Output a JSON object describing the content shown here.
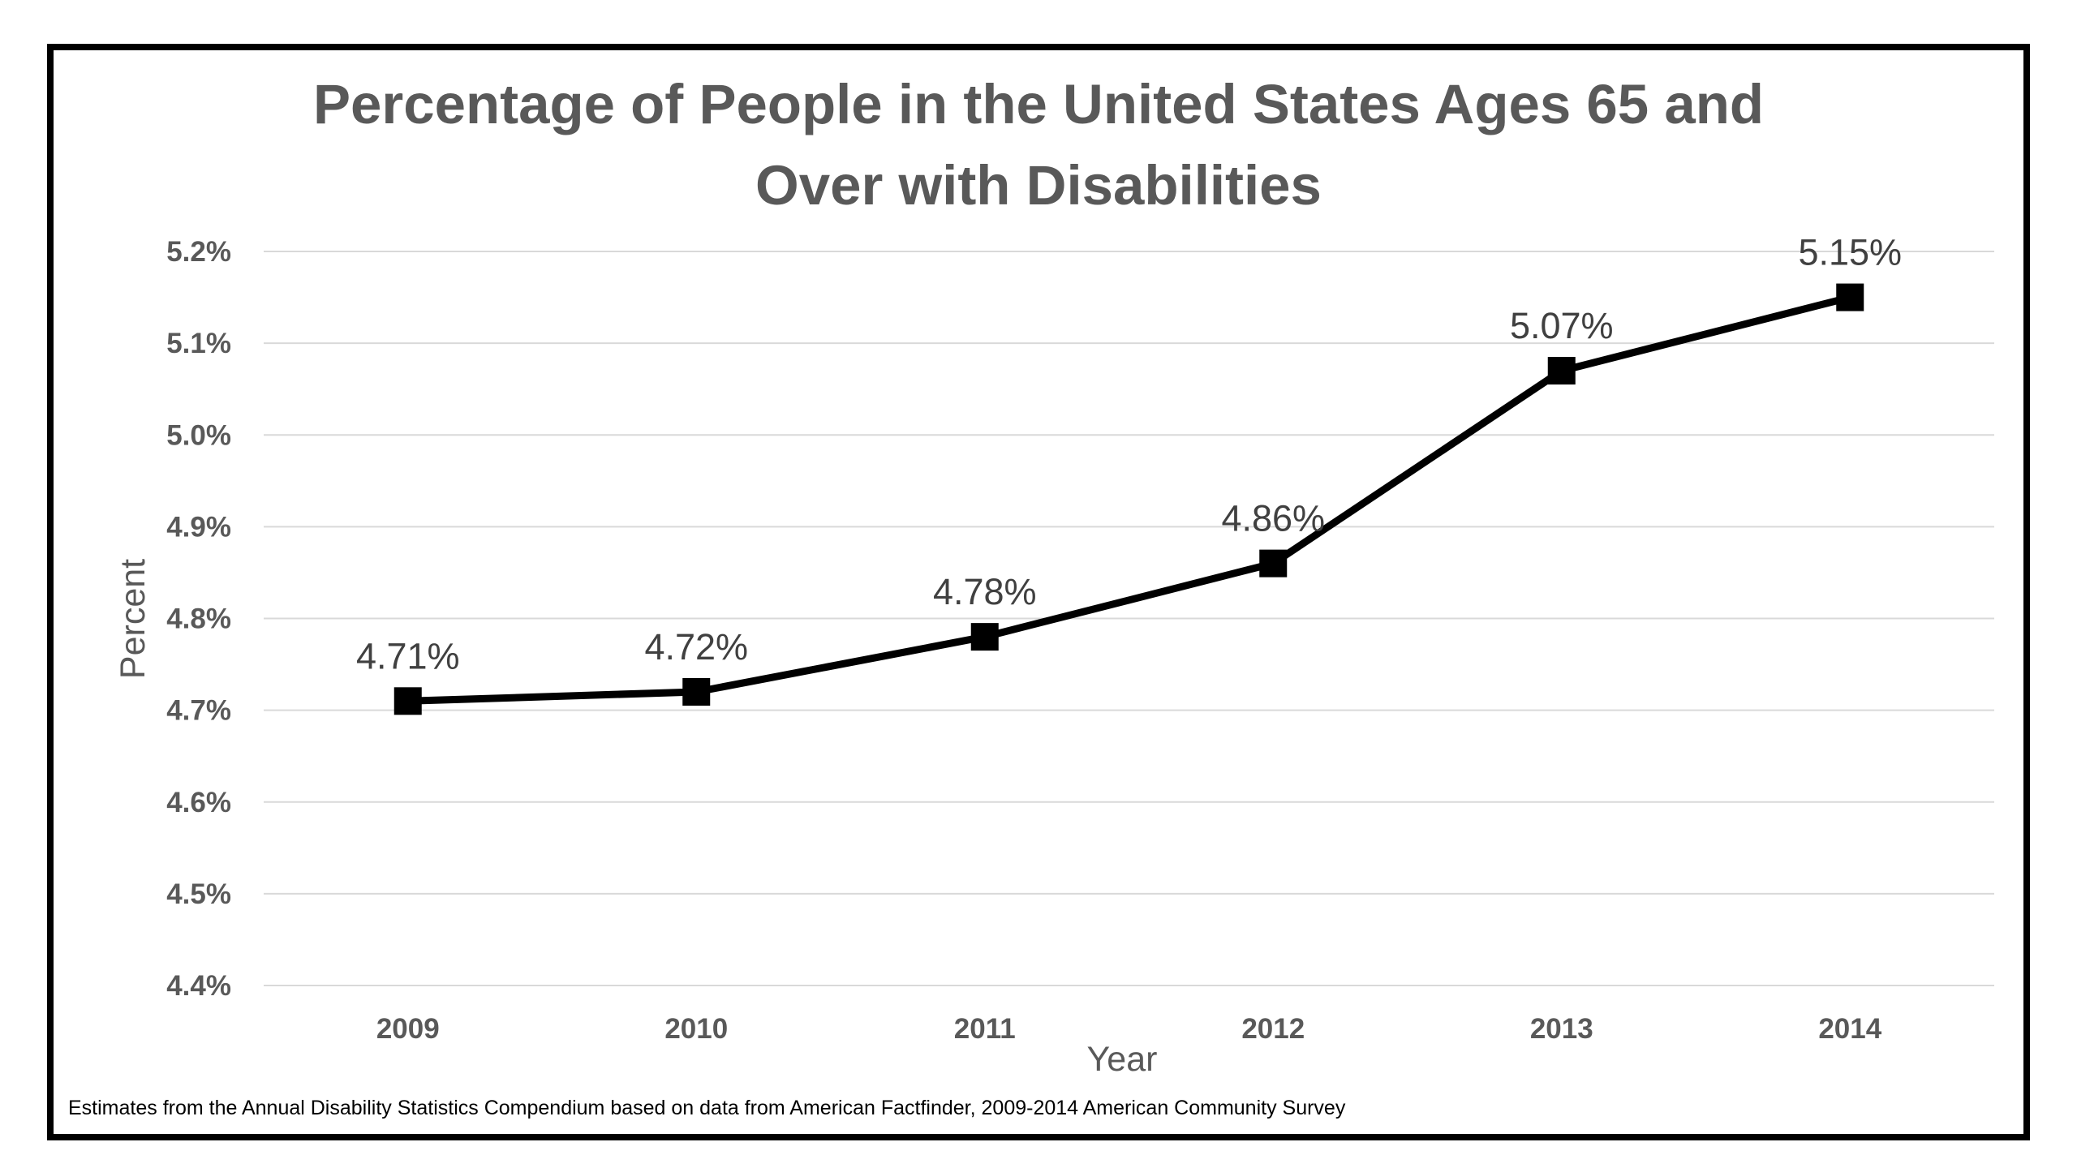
{
  "chart_data": {
    "type": "line",
    "title": "Percentage of People in the United States Ages 65 and Over with Disabilities",
    "title_lines": [
      "Percentage of People in the United States Ages 65 and",
      "Over with Disabilities"
    ],
    "xlabel": "Year",
    "ylabel": "Percent",
    "categories": [
      "2009",
      "2010",
      "2011",
      "2012",
      "2013",
      "2014"
    ],
    "values": [
      4.71,
      4.72,
      4.78,
      4.86,
      5.07,
      5.15
    ],
    "data_labels": [
      "4.71%",
      "4.72%",
      "4.78%",
      "4.86%",
      "5.07%",
      "5.15%"
    ],
    "ylim": [
      4.4,
      5.2
    ],
    "yticks": [
      4.4,
      4.5,
      4.6,
      4.7,
      4.8,
      4.9,
      5.0,
      5.1,
      5.2
    ],
    "ytick_labels": [
      "4.4%",
      "4.5%",
      "4.6%",
      "4.7%",
      "4.8%",
      "4.9%",
      "5.0%",
      "5.1%",
      "5.2%"
    ],
    "grid": true,
    "legend": "none",
    "marker": "square",
    "colors": {
      "line": "#000000",
      "marker": "#000000",
      "grid": "#d9d9d9",
      "text": "#595959",
      "frame": "#000000"
    },
    "source_note": "Estimates from the Annual Disability Statistics Compendium based on data from American Factfinder, 2009-2014 American Community Survey"
  }
}
